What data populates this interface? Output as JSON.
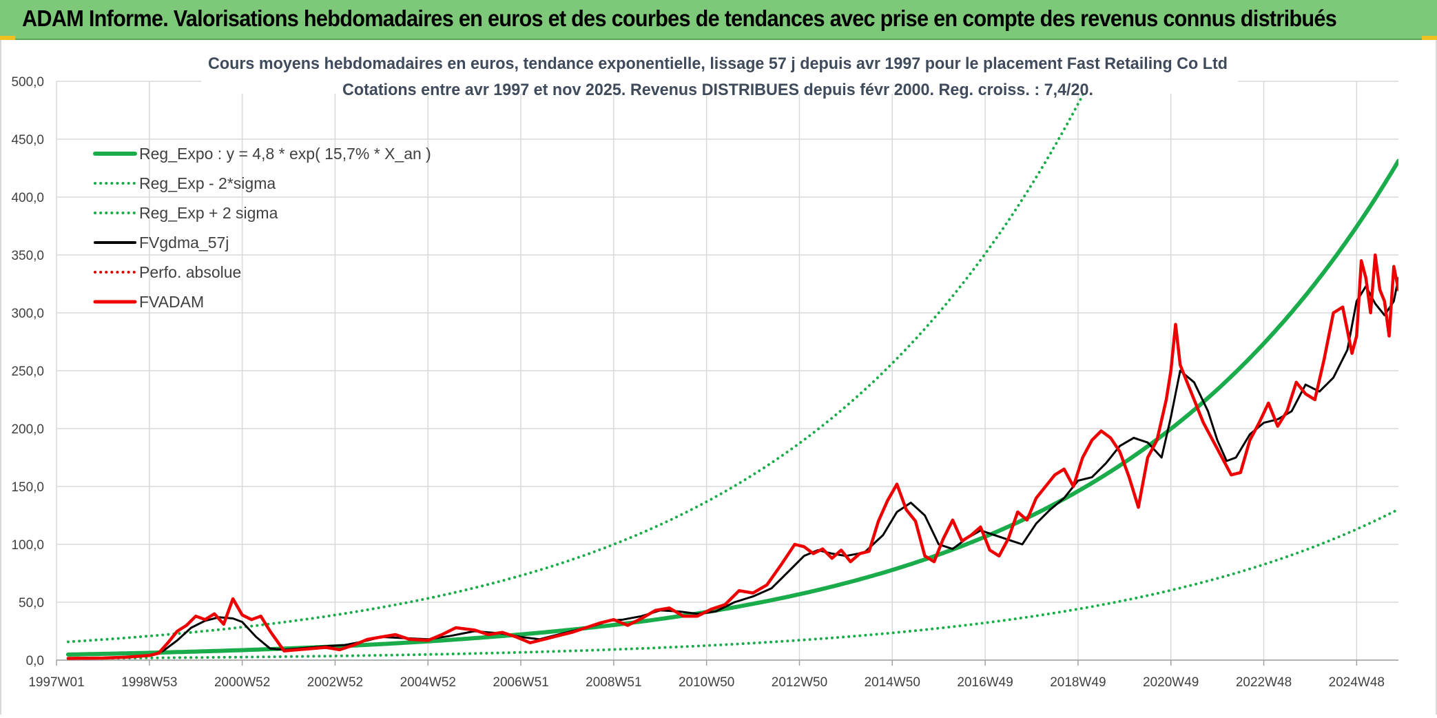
{
  "banner": {
    "title": "ADAM Informe. Valorisations hebdomadaires en euros et des courbes de tendances avec prise en compte des revenus connus distribués"
  },
  "chart_data": {
    "type": "line",
    "title": "Cours moyens hebdomadaires en euros, tendance exponentielle, lissage 57 j depuis avr 1997 pour le placement Fast Retailing Co Ltd",
    "subtitle": "Cotations entre avr 1997 et nov 2025. Revenus DISTRIBUES depuis févr 2000. Reg. croiss. : 7,4/20.",
    "xlabel": "",
    "ylabel": "",
    "ylim": [
      0,
      500
    ],
    "yticks": [
      "0,0",
      "50,0",
      "100,0",
      "150,0",
      "200,0",
      "250,0",
      "300,0",
      "350,0",
      "400,0",
      "450,0",
      "500,0"
    ],
    "xlim": [
      1997.0,
      2025.9
    ],
    "xticks": [
      {
        "label": "1997W01",
        "x": 1997.0
      },
      {
        "label": "1998W53",
        "x": 1999.0
      },
      {
        "label": "2000W52",
        "x": 2001.0
      },
      {
        "label": "2002W52",
        "x": 2003.0
      },
      {
        "label": "2004W52",
        "x": 2005.0
      },
      {
        "label": "2006W51",
        "x": 2007.0
      },
      {
        "label": "2008W51",
        "x": 2009.0
      },
      {
        "label": "2010W50",
        "x": 2011.0
      },
      {
        "label": "2012W50",
        "x": 2013.0
      },
      {
        "label": "2014W50",
        "x": 2015.0
      },
      {
        "label": "2016W49",
        "x": 2017.0
      },
      {
        "label": "2018W49",
        "x": 2019.0
      },
      {
        "label": "2020W49",
        "x": 2021.0
      },
      {
        "label": "2022W48",
        "x": 2023.0
      },
      {
        "label": "2024W48",
        "x": 2025.0
      }
    ],
    "grid": true,
    "legend_position": "top-left",
    "series": [
      {
        "name": "Reg_Expo : y = 4,8 * exp( 15,7% *  X_an )",
        "style": "solid",
        "color": "#1aab4b",
        "model": {
          "a": 4.8,
          "rate": 0.157,
          "x0": 1997.25
        }
      },
      {
        "name": "Reg_Exp - 2*sigma",
        "style": "dotted",
        "color": "#1aab4b",
        "model": {
          "a": 1.45,
          "rate": 0.157,
          "x0": 1997.25
        }
      },
      {
        "name": "Reg_Exp + 2 sigma",
        "style": "dotted",
        "color": "#1aab4b",
        "model": {
          "a": 15.8,
          "rate": 0.157,
          "x0": 1997.25
        }
      },
      {
        "name": "FVgdma_57j",
        "style": "solid",
        "color": "#000000",
        "x": [
          1997.25,
          1997.5,
          1998.0,
          1998.5,
          1999.0,
          1999.3,
          1999.6,
          1999.9,
          2000.2,
          2000.5,
          2000.8,
          2001.0,
          2001.3,
          2001.6,
          2001.9,
          2002.2,
          2002.5,
          2002.8,
          2003.2,
          2003.6,
          2004.0,
          2004.5,
          2005.0,
          2005.5,
          2006.0,
          2006.3,
          2006.6,
          2007.0,
          2007.4,
          2007.8,
          2008.2,
          2008.6,
          2008.9,
          2009.2,
          2009.6,
          2010.0,
          2010.4,
          2010.8,
          2011.2,
          2011.6,
          2012.0,
          2012.4,
          2012.8,
          2013.1,
          2013.4,
          2013.7,
          2014.0,
          2014.4,
          2014.8,
          2015.1,
          2015.4,
          2015.7,
          2016.0,
          2016.3,
          2016.6,
          2016.9,
          2017.2,
          2017.5,
          2017.8,
          2018.1,
          2018.4,
          2018.7,
          2019.0,
          2019.3,
          2019.6,
          2019.9,
          2020.2,
          2020.5,
          2020.8,
          2021.0,
          2021.2,
          2021.5,
          2021.8,
          2022.0,
          2022.2,
          2022.4,
          2022.7,
          2023.0,
          2023.3,
          2023.6,
          2023.9,
          2024.2,
          2024.5,
          2024.8,
          2025.0,
          2025.2,
          2025.4,
          2025.6,
          2025.8,
          2025.9
        ],
        "y": [
          1.5,
          1.6,
          1.8,
          2.5,
          4,
          8,
          17,
          28,
          34,
          37,
          36,
          33,
          20,
          10,
          9,
          10,
          11,
          12,
          13,
          16,
          20,
          19,
          18,
          21,
          25,
          24,
          23,
          20,
          18,
          22,
          26,
          30,
          34,
          35,
          38,
          43,
          42,
          40,
          42,
          50,
          55,
          62,
          78,
          90,
          95,
          92,
          90,
          93,
          108,
          128,
          136,
          125,
          100,
          96,
          105,
          112,
          108,
          104,
          100,
          118,
          130,
          140,
          155,
          158,
          170,
          185,
          192,
          188,
          175,
          210,
          250,
          240,
          215,
          190,
          172,
          175,
          195,
          205,
          208,
          215,
          238,
          232,
          244,
          268,
          310,
          323,
          308,
          298,
          310,
          330
        ]
      },
      {
        "name": "Perfo. absolue",
        "style": "dotted",
        "color": "#e00000",
        "x": [
          1997.25
        ],
        "y": [
          1.5
        ]
      },
      {
        "name": "FVADAM",
        "style": "solid",
        "color": "#ee0000",
        "x": [
          1997.25,
          1997.5,
          1998.0,
          1998.5,
          1999.0,
          1999.2,
          1999.4,
          1999.6,
          1999.8,
          2000.0,
          2000.2,
          2000.4,
          2000.6,
          2000.8,
          2001.0,
          2001.2,
          2001.4,
          2001.6,
          2001.9,
          2002.2,
          2002.5,
          2002.8,
          2003.1,
          2003.4,
          2003.7,
          2004.0,
          2004.3,
          2004.6,
          2005.0,
          2005.3,
          2005.6,
          2006.0,
          2006.3,
          2006.6,
          2006.9,
          2007.2,
          2007.5,
          2007.8,
          2008.1,
          2008.4,
          2008.7,
          2009.0,
          2009.3,
          2009.6,
          2009.9,
          2010.2,
          2010.5,
          2010.8,
          2011.1,
          2011.4,
          2011.7,
          2012.0,
          2012.3,
          2012.6,
          2012.9,
          2013.1,
          2013.3,
          2013.5,
          2013.7,
          2013.9,
          2014.1,
          2014.3,
          2014.5,
          2014.7,
          2014.9,
          2015.1,
          2015.3,
          2015.5,
          2015.7,
          2015.9,
          2016.1,
          2016.3,
          2016.5,
          2016.7,
          2016.9,
          2017.1,
          2017.3,
          2017.5,
          2017.7,
          2017.9,
          2018.1,
          2018.3,
          2018.5,
          2018.7,
          2018.9,
          2019.1,
          2019.3,
          2019.5,
          2019.7,
          2019.9,
          2020.1,
          2020.3,
          2020.5,
          2020.7,
          2020.9,
          2021.0,
          2021.1,
          2021.2,
          2021.3,
          2021.5,
          2021.7,
          2021.9,
          2022.1,
          2022.3,
          2022.5,
          2022.7,
          2022.9,
          2023.1,
          2023.3,
          2023.5,
          2023.7,
          2023.9,
          2024.1,
          2024.3,
          2024.5,
          2024.7,
          2024.9,
          2025.0,
          2025.1,
          2025.2,
          2025.3,
          2025.4,
          2025.5,
          2025.6,
          2025.7,
          2025.8,
          2025.9
        ],
        "y": [
          1.5,
          1.6,
          1.8,
          2.5,
          4,
          6,
          15,
          25,
          30,
          38,
          35,
          40,
          31,
          53,
          39,
          35,
          38,
          25,
          8,
          9,
          10,
          11,
          9,
          13,
          18,
          20,
          22,
          18,
          17,
          22,
          28,
          26,
          22,
          24,
          20,
          15,
          18,
          21,
          24,
          28,
          32,
          35,
          30,
          36,
          43,
          45,
          38,
          38,
          44,
          48,
          60,
          58,
          65,
          82,
          100,
          98,
          92,
          96,
          88,
          95,
          85,
          92,
          94,
          120,
          138,
          152,
          130,
          120,
          90,
          85,
          105,
          121,
          103,
          108,
          115,
          95,
          90,
          105,
          128,
          121,
          140,
          150,
          160,
          165,
          150,
          175,
          190,
          198,
          192,
          180,
          158,
          132,
          175,
          190,
          225,
          250,
          290,
          255,
          245,
          225,
          205,
          190,
          175,
          160,
          162,
          190,
          205,
          222,
          202,
          215,
          240,
          230,
          225,
          260,
          300,
          305,
          265,
          280,
          345,
          330,
          300,
          350,
          320,
          310,
          280,
          340,
          320
        ]
      }
    ]
  }
}
